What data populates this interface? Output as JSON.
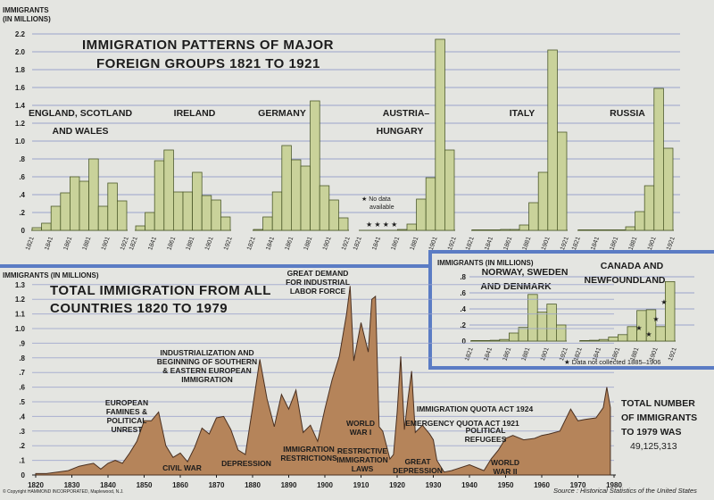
{
  "colors": {
    "paper": "#e4e5e1",
    "grid": "#9aa2cc",
    "frame": "#5b7cc4",
    "bar": "#c9d29a",
    "bar_stroke": "#4d5a2a",
    "area": "#b5845a",
    "area_stroke": "#4a3020",
    "ink": "#1c1c1c"
  },
  "top": {
    "title_line1": "IMMIGRATION PATTERNS OF MAJOR",
    "title_line2": "FOREIGN GROUPS 1821 TO 1921",
    "y_label_1": "IMMIGRANTS",
    "y_label_2": "(IN MILLIONS)",
    "y_ticks": [
      "0",
      ".2",
      ".4",
      ".6",
      ".8",
      "1.0",
      "1.2",
      "1.4",
      "1.6",
      "1.8",
      "2.0",
      "2.2"
    ],
    "star_note_1": "★ No data",
    "star_note_2": "available",
    "stars": "★ ★ ★ ★"
  },
  "right": {
    "y_label": "IMMIGRANTS (IN MILLIONS)",
    "y_ticks": [
      "0",
      ".2",
      ".4",
      ".6",
      ".8"
    ],
    "footnote": "★ Data not collected 1885–1906"
  },
  "bottom": {
    "y_label": "IMMIGRANTS (IN MILLIONS)",
    "title_line1": "TOTAL IMMIGRATION FROM ALL",
    "title_line2": "COUNTRIES 1820 TO 1979",
    "y_ticks": [
      "0",
      ".1",
      ".2",
      ".3",
      ".4",
      ".5",
      ".6",
      ".7",
      ".8",
      ".9",
      "1.0",
      "1.1",
      "1.2",
      "1.3"
    ],
    "x_ticks": [
      "1820",
      "1830",
      "1840",
      "1850",
      "1860",
      "1870",
      "1880",
      "1890",
      "1900",
      "1910",
      "1920",
      "1930",
      "1940",
      "1950",
      "1960",
      "1970",
      "1980"
    ],
    "total_line1": "TOTAL NUMBER",
    "total_line2": "OF IMMIGRANTS",
    "total_line3": "TO 1979 WAS",
    "total_value": "49,125,313",
    "copyright": "© Copyright HAMMOND INCORPORATED, Maplewood, N.J.",
    "source": "Source : Historical Statistics of the United States"
  },
  "chart_data": [
    {
      "type": "bar",
      "title": "IMMIGRATION PATTERNS OF MAJOR FOREIGN GROUPS 1821 TO 1921",
      "ylabel": "IMMIGRANTS (IN MILLIONS)",
      "ylim": [
        0,
        2.2
      ],
      "categories": [
        "1821",
        "1831",
        "1841",
        "1851",
        "1861",
        "1871",
        "1881",
        "1891",
        "1901",
        "1911"
      ],
      "x_tick_labels": [
        "1821",
        "1841",
        "1861",
        "1881",
        "1901",
        "1921"
      ],
      "series": [
        {
          "name": "ENGLAND, SCOTLAND AND WALES",
          "values": [
            0.03,
            0.08,
            0.27,
            0.42,
            0.6,
            0.55,
            0.8,
            0.27,
            0.53,
            0.33
          ]
        },
        {
          "name": "IRELAND",
          "values": [
            0.05,
            0.2,
            0.78,
            0.9,
            0.43,
            0.43,
            0.65,
            0.39,
            0.34,
            0.15
          ]
        },
        {
          "name": "GERMANY",
          "values": [
            0.01,
            0.15,
            0.43,
            0.95,
            0.79,
            0.72,
            1.45,
            0.5,
            0.34,
            0.14
          ]
        },
        {
          "name": "AUSTRIA–HUNGARY",
          "values": [
            null,
            null,
            null,
            null,
            0.01,
            0.07,
            0.35,
            0.59,
            2.14,
            0.9
          ]
        },
        {
          "name": "ITALY",
          "values": [
            0.0,
            0.0,
            0.0,
            0.01,
            0.01,
            0.06,
            0.31,
            0.65,
            2.02,
            1.1
          ]
        },
        {
          "name": "RUSSIA",
          "values": [
            0.0,
            0.0,
            0.0,
            0.0,
            0.0,
            0.04,
            0.21,
            0.5,
            1.59,
            0.92
          ]
        }
      ]
    },
    {
      "type": "bar",
      "ylabel": "IMMIGRANTS (IN MILLIONS)",
      "ylim": [
        0,
        0.8
      ],
      "categories": [
        "1821",
        "1831",
        "1841",
        "1851",
        "1861",
        "1871",
        "1881",
        "1891",
        "1901",
        "1911"
      ],
      "x_tick_labels": [
        "1821",
        "1841",
        "1861",
        "1881",
        "1901",
        "1921"
      ],
      "series": [
        {
          "name": "NORWAY, SWEDEN AND DENMARK",
          "values": [
            0.0,
            0.0,
            0.01,
            0.02,
            0.1,
            0.17,
            0.58,
            0.36,
            0.46,
            0.2
          ]
        },
        {
          "name": "CANADA AND NEWFOUNDLAND",
          "values": [
            0.0,
            0.01,
            0.02,
            0.05,
            0.08,
            0.18,
            0.38,
            0.39,
            0.18,
            0.74
          ]
        }
      ]
    },
    {
      "type": "area",
      "title": "TOTAL IMMIGRATION FROM ALL COUNTRIES 1820 TO 1979",
      "ylabel": "IMMIGRANTS (IN MILLIONS)",
      "xlim": [
        1820,
        1980
      ],
      "ylim": [
        0,
        1.3
      ],
      "x": [
        1820,
        1823,
        1826,
        1829,
        1832,
        1834,
        1836,
        1838,
        1840,
        1842,
        1844,
        1846,
        1848,
        1850,
        1852,
        1854,
        1856,
        1858,
        1860,
        1862,
        1864,
        1866,
        1868,
        1870,
        1872,
        1874,
        1876,
        1878,
        1880,
        1882,
        1884,
        1886,
        1888,
        1890,
        1892,
        1894,
        1896,
        1898,
        1900,
        1902,
        1904,
        1906,
        1907,
        1908,
        1910,
        1912,
        1913,
        1914,
        1915,
        1916,
        1918,
        1919,
        1920,
        1921,
        1922,
        1923,
        1924,
        1925,
        1927,
        1929,
        1930,
        1931,
        1933,
        1935,
        1940,
        1944,
        1946,
        1948,
        1950,
        1952,
        1955,
        1958,
        1960,
        1962,
        1965,
        1968,
        1970,
        1972,
        1975,
        1977,
        1978,
        1979
      ],
      "y": [
        0.01,
        0.01,
        0.02,
        0.03,
        0.06,
        0.07,
        0.08,
        0.04,
        0.08,
        0.1,
        0.08,
        0.15,
        0.23,
        0.37,
        0.37,
        0.43,
        0.2,
        0.12,
        0.15,
        0.09,
        0.19,
        0.32,
        0.28,
        0.39,
        0.4,
        0.31,
        0.17,
        0.14,
        0.46,
        0.79,
        0.52,
        0.33,
        0.55,
        0.45,
        0.58,
        0.29,
        0.34,
        0.23,
        0.45,
        0.65,
        0.81,
        1.1,
        1.29,
        0.78,
        1.04,
        0.84,
        1.2,
        1.22,
        0.33,
        0.3,
        0.11,
        0.14,
        0.43,
        0.81,
        0.31,
        0.52,
        0.71,
        0.29,
        0.34,
        0.28,
        0.24,
        0.1,
        0.02,
        0.03,
        0.07,
        0.03,
        0.11,
        0.17,
        0.25,
        0.27,
        0.24,
        0.25,
        0.27,
        0.28,
        0.3,
        0.45,
        0.37,
        0.38,
        0.39,
        0.46,
        0.6,
        0.46
      ],
      "annotations": [
        "EUROPEAN FAMINES & POLITICAL UNREST",
        "CIVIL WAR",
        "INDUSTRIALIZATION AND BEGINNING OF SOUTHERN & EASTERN EUROPEAN IMMIGRATION",
        "DEPRESSION",
        "IMMIGRATION RESTRICTIONS",
        "GREAT DEMAND FOR INDUSTRIAL LABOR FORCE",
        "WORLD WAR I",
        "RESTRICTIVE IMMIGRATION LAWS",
        "EMERGENCY QUOTA ACT 1921",
        "IMMIGRATION QUOTA ACT 1924",
        "GREAT DEPRESSION",
        "POLITICAL REFUGEES",
        "WORLD WAR II"
      ]
    }
  ]
}
